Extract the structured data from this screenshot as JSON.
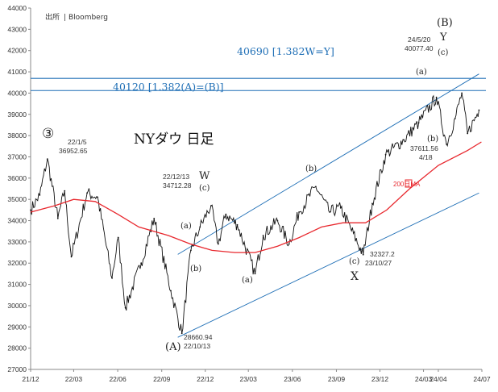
{
  "chart_data": {
    "type": "line",
    "title": "NYダウ 日足",
    "source_label": "出所",
    "source": "Bloomberg",
    "ylim": [
      27000,
      44000
    ],
    "yticks": [
      27000,
      28000,
      29000,
      30000,
      31000,
      32000,
      33000,
      34000,
      35000,
      36000,
      37000,
      38000,
      39000,
      40000,
      41000,
      42000,
      43000,
      44000
    ],
    "xlim": [
      "2021-12-01",
      "2024-07-01"
    ],
    "xticks": [
      "21/12",
      "22/03",
      "22/06",
      "22/09",
      "22/12",
      "23/03",
      "23/06",
      "23/09",
      "23/12",
      "24/03",
      "24/04",
      "24/07"
    ],
    "grid": false,
    "colors": {
      "price": "#111111",
      "ma": "#e8282e",
      "lines": "#1f6fb6",
      "axis": "#888888"
    },
    "series": [
      {
        "name": "",
        "type": "price",
        "points": [
          [
            "2021-12-01",
            34500
          ],
          [
            "2021-12-20",
            35200
          ],
          [
            "2022-01-05",
            36900
          ],
          [
            "2022-01-27",
            34100
          ],
          [
            "2022-02-10",
            35400
          ],
          [
            "2022-02-24",
            32300
          ],
          [
            "2022-03-29",
            35300
          ],
          [
            "2022-04-20",
            35100
          ],
          [
            "2022-05-20",
            31300
          ],
          [
            "2022-06-02",
            33200
          ],
          [
            "2022-06-17",
            29900
          ],
          [
            "2022-07-20",
            32000
          ],
          [
            "2022-08-16",
            34100
          ],
          [
            "2022-09-20",
            30700
          ],
          [
            "2022-10-13",
            28700
          ],
          [
            "2022-11-01",
            32600
          ],
          [
            "2022-11-20",
            33700
          ],
          [
            "2022-12-13",
            34700
          ],
          [
            "2022-12-28",
            32900
          ],
          [
            "2023-01-13",
            34300
          ],
          [
            "2023-02-06",
            33800
          ],
          [
            "2023-03-15",
            31500
          ],
          [
            "2023-04-01",
            33300
          ],
          [
            "2023-05-01",
            34000
          ],
          [
            "2023-05-25",
            32900
          ],
          [
            "2023-06-15",
            34400
          ],
          [
            "2023-07-20",
            35600
          ],
          [
            "2023-08-18",
            34400
          ],
          [
            "2023-09-10",
            34600
          ],
          [
            "2023-10-27",
            32400
          ],
          [
            "2023-11-15",
            34800
          ],
          [
            "2023-12-13",
            37100
          ],
          [
            "2024-01-20",
            37800
          ],
          [
            "2024-02-20",
            38600
          ],
          [
            "2024-03-28",
            39800
          ],
          [
            "2024-04-18",
            37600
          ],
          [
            "2024-05-06",
            38800
          ],
          [
            "2024-05-20",
            40000
          ],
          [
            "2024-06-01",
            38100
          ],
          [
            "2024-06-25",
            39200
          ]
        ]
      },
      {
        "name": "200MA",
        "type": "ma",
        "points": [
          [
            "2021-12-01",
            34400
          ],
          [
            "2022-01-20",
            34700
          ],
          [
            "2022-03-01",
            35000
          ],
          [
            "2022-04-15",
            34900
          ],
          [
            "2022-06-01",
            34300
          ],
          [
            "2022-07-15",
            33700
          ],
          [
            "2022-09-15",
            33300
          ],
          [
            "2022-10-31",
            32900
          ],
          [
            "2022-12-15",
            32600
          ],
          [
            "2023-02-01",
            32500
          ],
          [
            "2023-03-15",
            32500
          ],
          [
            "2023-05-01",
            32800
          ],
          [
            "2023-06-15",
            33200
          ],
          [
            "2023-08-01",
            33700
          ],
          [
            "2023-09-15",
            33900
          ],
          [
            "2023-11-01",
            33900
          ],
          [
            "2023-12-15",
            34500
          ],
          [
            "2024-02-01",
            35500
          ],
          [
            "2024-04-01",
            36600
          ],
          [
            "2024-06-01",
            37300
          ],
          [
            "2024-06-30",
            37700
          ]
        ]
      }
    ],
    "horizontal_lines": [
      {
        "value": 40690,
        "label": "40690 [1.382W=Y]"
      },
      {
        "value": 40120,
        "label": "40120 [1.382(A)=(B)]"
      }
    ],
    "channel": {
      "upper": [
        [
          "2022-10-13",
          32600
        ],
        [
          "2024-06-25",
          40900
        ]
      ],
      "lower": [
        [
          "2022-10-13",
          28700
        ],
        [
          "2024-06-25",
          35300
        ]
      ]
    },
    "annotations": {
      "circled": "③",
      "peak_date": "22/1/5",
      "peak_value": "36952.65",
      "w_date": "22/12/13",
      "w_value": "34712.28",
      "a_low_value": "28660.94",
      "a_low_date": "22/10/13",
      "x_value": "32327.2",
      "x_date": "23/10/27",
      "y_date": "24/5/20",
      "y_value": "40077.40",
      "b_low_value": "37611.56",
      "b_low_date": "4/18",
      "ma_label": "200日MA",
      "wave_A": "(A)",
      "wave_B": "(B)",
      "wave_W": "W",
      "wave_X": "X",
      "wave_Y": "Y",
      "sub_a": "(a)",
      "sub_b": "(b)",
      "sub_c": "(c)"
    }
  }
}
